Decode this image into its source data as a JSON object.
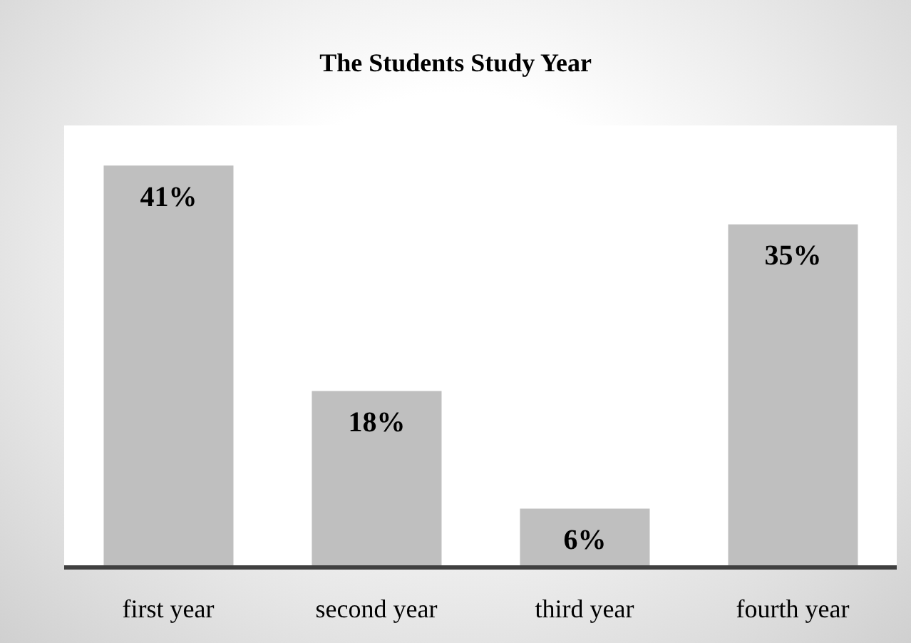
{
  "chart_data": {
    "type": "bar",
    "title": "The Students Study Year",
    "categories": [
      "first year",
      "second year",
      "third year",
      "fourth year"
    ],
    "values": [
      41,
      18,
      6,
      35
    ],
    "value_labels": [
      "41%",
      "18%",
      "6%",
      "35%"
    ],
    "color": "#bfbfbf",
    "grid": false,
    "legend": false
  }
}
